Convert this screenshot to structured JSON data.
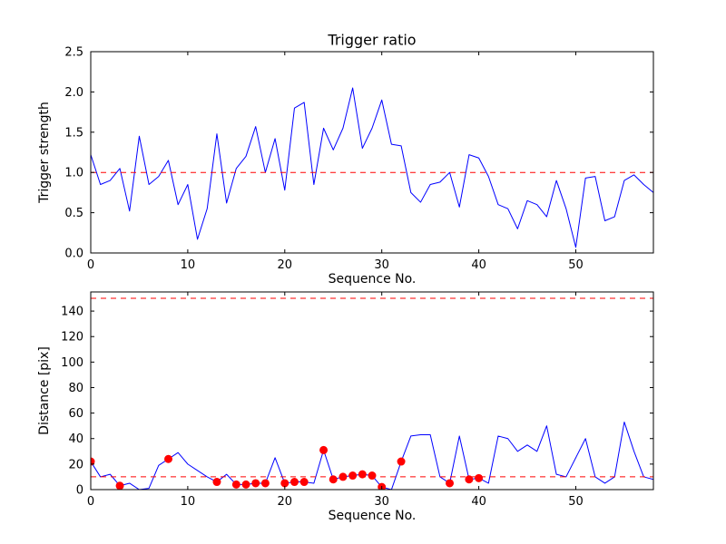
{
  "figure": {
    "background": "#ffffff",
    "axis_color": "#000000",
    "line_color": "#0000ff",
    "reference_color": "#ff0000",
    "marker_color": "#ff0000"
  },
  "chart_data": [
    {
      "type": "line",
      "title": "Trigger ratio",
      "xlabel": "Sequence No.",
      "ylabel": "Trigger strength",
      "xlim": [
        0,
        58
      ],
      "ylim": [
        0.0,
        2.5
      ],
      "xticks": [
        0,
        10,
        20,
        30,
        40,
        50
      ],
      "xticklabels": [
        "0",
        "10",
        "20",
        "30",
        "40",
        "50"
      ],
      "yticks": [
        0.0,
        0.5,
        1.0,
        1.5,
        2.0,
        2.5
      ],
      "yticklabels": [
        "0.0",
        "0.5",
        "1.0",
        "1.5",
        "2.0",
        "2.5"
      ],
      "grid": false,
      "legend": false,
      "series": [
        {
          "name": "trigger-strength",
          "color": "#0000ff",
          "y": [
            1.22,
            0.85,
            0.9,
            1.05,
            0.52,
            1.45,
            0.85,
            0.95,
            1.15,
            0.6,
            0.85,
            0.17,
            0.55,
            1.48,
            0.62,
            1.05,
            1.2,
            1.57,
            1.0,
            1.42,
            0.78,
            1.8,
            1.87,
            0.85,
            1.55,
            1.28,
            1.55,
            2.05,
            1.3,
            1.55,
            1.9,
            1.35,
            1.33,
            0.75,
            0.63,
            0.85,
            0.88,
            1.0,
            0.57,
            1.22,
            1.18,
            0.95,
            0.6,
            0.55,
            0.3,
            0.65,
            0.6,
            0.45,
            0.9,
            0.55,
            0.07,
            0.93,
            0.95,
            0.4,
            0.45,
            0.9,
            0.97,
            0.85,
            0.75
          ]
        }
      ],
      "reference_lines": [
        {
          "y": 1.0,
          "color": "#ff0000",
          "style": "dashed"
        }
      ]
    },
    {
      "type": "line",
      "title": "",
      "xlabel": "Sequence No.",
      "ylabel": "Distance [pix]",
      "xlim": [
        0,
        58
      ],
      "ylim": [
        0,
        155
      ],
      "xticks": [
        0,
        10,
        20,
        30,
        40,
        50
      ],
      "xticklabels": [
        "0",
        "10",
        "20",
        "30",
        "40",
        "50"
      ],
      "yticks": [
        0,
        20,
        40,
        60,
        80,
        100,
        120,
        140
      ],
      "yticklabels": [
        "0",
        "20",
        "40",
        "60",
        "80",
        "100",
        "120",
        "140"
      ],
      "grid": false,
      "legend": false,
      "series": [
        {
          "name": "distance",
          "color": "#0000ff",
          "y": [
            22,
            10,
            12,
            3,
            5,
            0,
            1,
            19,
            24,
            29,
            20,
            15,
            10,
            6,
            12,
            4,
            4,
            5,
            5,
            25,
            5,
            6,
            6,
            5,
            31,
            8,
            10,
            11,
            12,
            11,
            2,
            0,
            22,
            42,
            43,
            43,
            10,
            5,
            42,
            8,
            9,
            5,
            42,
            40,
            30,
            35,
            30,
            50,
            12,
            10,
            25,
            40,
            10,
            5,
            10,
            53,
            30,
            10,
            8
          ]
        }
      ],
      "markers": {
        "name": "triggered-points",
        "color": "#ff0000",
        "x": [
          0,
          3,
          8,
          13,
          15,
          16,
          17,
          18,
          20,
          21,
          22,
          24,
          25,
          26,
          27,
          28,
          29,
          30,
          32,
          37,
          39,
          40
        ]
      },
      "reference_lines": [
        {
          "y": 150,
          "color": "#ff0000",
          "style": "dashed"
        },
        {
          "y": 10,
          "color": "#ff0000",
          "style": "dashed"
        }
      ]
    }
  ]
}
